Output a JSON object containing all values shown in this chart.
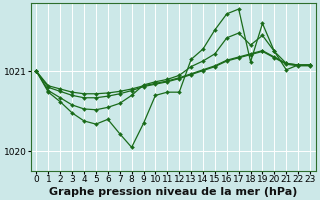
{
  "bg_color": "#cce8e8",
  "grid_color": "#ffffff",
  "line_color": "#1a6b1a",
  "marker_color": "#1a6b1a",
  "title": "Graphe pression niveau de la mer (hPa)",
  "xlabel_ticks": [
    0,
    1,
    2,
    3,
    4,
    5,
    6,
    7,
    8,
    9,
    10,
    11,
    12,
    13,
    14,
    15,
    16,
    17,
    18,
    19,
    20,
    21,
    22,
    23
  ],
  "yticks": [
    1020,
    1021
  ],
  "ylim": [
    1019.75,
    1021.85
  ],
  "xlim": [
    -0.5,
    23.5
  ],
  "series_smooth1": [
    1021.0,
    1020.82,
    1020.78,
    1020.74,
    1020.72,
    1020.72,
    1020.73,
    1020.75,
    1020.78,
    1020.82,
    1020.85,
    1020.88,
    1020.92,
    1020.97,
    1021.02,
    1021.07,
    1021.14,
    1021.18,
    1021.22,
    1021.26,
    1021.18,
    1021.1,
    1021.08,
    1021.08
  ],
  "series_smooth2": [
    1021.0,
    1020.8,
    1020.75,
    1020.7,
    1020.67,
    1020.67,
    1020.69,
    1020.72,
    1020.76,
    1020.81,
    1020.84,
    1020.87,
    1020.91,
    1020.96,
    1021.01,
    1021.06,
    1021.13,
    1021.17,
    1021.21,
    1021.25,
    1021.17,
    1021.09,
    1021.07,
    1021.07
  ],
  "series_medium": [
    1021.0,
    1020.76,
    1020.67,
    1020.58,
    1020.53,
    1020.52,
    1020.55,
    1020.6,
    1020.7,
    1020.83,
    1020.87,
    1020.9,
    1020.95,
    1021.06,
    1021.13,
    1021.22,
    1021.42,
    1021.48,
    1021.33,
    1021.45,
    1021.25,
    1021.1,
    1021.08,
    1021.08
  ],
  "series_jagged": [
    1021.0,
    1020.74,
    1020.62,
    1020.48,
    1020.38,
    1020.34,
    1020.4,
    1020.22,
    1020.05,
    1020.35,
    1020.7,
    1020.74,
    1020.74,
    1021.15,
    1021.28,
    1021.52,
    1021.72,
    1021.78,
    1021.12,
    1021.6,
    1021.25,
    1021.02,
    1021.08,
    1021.08
  ],
  "title_fontsize": 8,
  "tick_fontsize": 6.5
}
